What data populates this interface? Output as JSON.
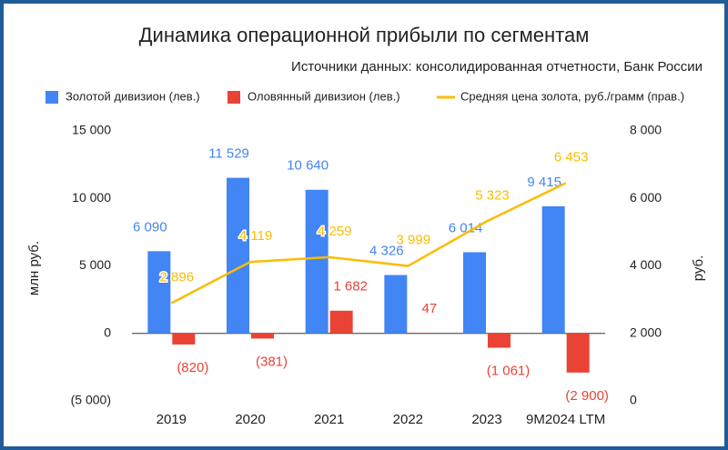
{
  "chart_data": {
    "type": "bar-line",
    "title": "Динамика операционной прибыли по сегментам",
    "subtitle": "Источники данных: консолидированная отчетности, Банк России",
    "categories": [
      "2019",
      "2020",
      "2021",
      "2022",
      "2023",
      "9M2024 LTM"
    ],
    "series": [
      {
        "name": "Золотой дивизион (лев.)",
        "color": "#4285f4",
        "kind": "bar",
        "values": [
          6090,
          11529,
          10640,
          4326,
          6014,
          9415
        ],
        "value_labels": [
          "6 090",
          "11 529",
          "10 640",
          "4 326",
          "6 014",
          "9 415"
        ]
      },
      {
        "name": "Оловянный дивизион (лев.)",
        "color": "#ea4335",
        "kind": "bar",
        "values": [
          -820,
          -381,
          1682,
          47,
          -1061,
          -2900
        ],
        "value_labels": [
          "(820)",
          "(381)",
          "1 682",
          "47",
          "(1 061)",
          "(2 900)"
        ]
      },
      {
        "name": "Средняя цена золота, руб./грамм (прав.)",
        "color": "#fbbc04",
        "kind": "line",
        "axis": "y2",
        "values": [
          2896,
          4119,
          4259,
          3999,
          5323,
          6453
        ],
        "value_labels": [
          "2 896",
          "4 119",
          "4 259",
          "3 999",
          "5 323",
          "6 453"
        ]
      }
    ],
    "ylabel": "млн руб.",
    "y2label": "руб.",
    "ylim": [
      -5000,
      15000
    ],
    "yticks": [
      {
        "value": -5000,
        "label": "(5 000)"
      },
      0,
      {
        "value": 5000,
        "label": "5 000"
      },
      {
        "value": 10000,
        "label": "10 000"
      },
      {
        "value": 15000,
        "label": "15 000"
      }
    ],
    "y2lim": [
      0,
      8000
    ],
    "y2ticks": [
      0,
      {
        "value": 2000,
        "label": "2 000"
      },
      {
        "value": 4000,
        "label": "4 000"
      },
      {
        "value": 6000,
        "label": "6 000"
      },
      {
        "value": 8000,
        "label": "8 000"
      }
    ],
    "legend": "top"
  }
}
